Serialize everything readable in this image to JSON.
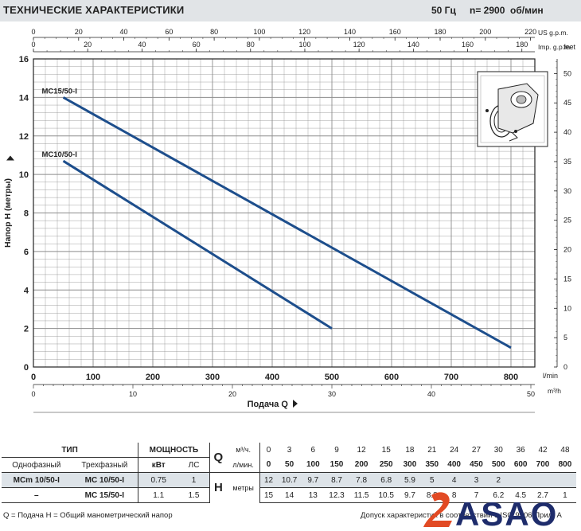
{
  "header": {
    "title": "ТЕХНИЧЕСКИЕ ХАРАКТЕРИСТИКИ",
    "frequency": "50 Гц",
    "speed": "n= 2900  об/мин"
  },
  "chart_data": {
    "type": "line",
    "xlabel": "Подача  Q",
    "ylabel": "Напор  H  (метры)",
    "x_unit_primary": "l/min",
    "x_unit_m3h": "m³/h",
    "x_unit_us": "US g.p.m.",
    "x_unit_imp": "Imp. g.p.m.",
    "y_unit_right": "feet",
    "xlim": [
      0,
      840
    ],
    "ylim": [
      0,
      16
    ],
    "grid": true,
    "x_ticks_lmin": [
      "0",
      "100",
      "200",
      "300",
      "400",
      "500",
      "600",
      "700",
      "800"
    ],
    "x_ticks_m3h": [
      "0",
      "10",
      "20",
      "30",
      "40",
      "50"
    ],
    "x_ticks_us": [
      "0",
      "20",
      "40",
      "60",
      "80",
      "100",
      "120",
      "140",
      "160",
      "180",
      "200",
      "220"
    ],
    "x_ticks_imp": [
      "0",
      "20",
      "40",
      "60",
      "80",
      "100",
      "120",
      "140",
      "160",
      "180"
    ],
    "y_ticks": [
      "0",
      "2",
      "4",
      "6",
      "8",
      "10",
      "12",
      "14",
      "16"
    ],
    "y_ticks_feet": [
      "0",
      "5",
      "10",
      "15",
      "20",
      "25",
      "30",
      "35",
      "40",
      "45",
      "50"
    ],
    "series": [
      {
        "name": "MC15/50-I",
        "x": [
          50,
          800
        ],
        "y": [
          14,
          1
        ]
      },
      {
        "name": "MC10/50-I",
        "x": [
          50,
          500
        ],
        "y": [
          10.7,
          2
        ]
      }
    ]
  },
  "table": {
    "type_header": "ТИП",
    "power_header": "МОЩНОСТЬ",
    "single_phase": "Однофазный",
    "three_phase": "Трехфазный",
    "kw": "кВт",
    "hp": "ЛС",
    "q_letter": "Q",
    "h_letter": "H",
    "q_unit_m3": "м³/ч.",
    "q_unit_l": "л/мин.",
    "h_unit": "метры",
    "q_m3": [
      "0",
      "3",
      "6",
      "9",
      "12",
      "15",
      "18",
      "21",
      "24",
      "27",
      "30",
      "36",
      "42",
      "48"
    ],
    "q_l": [
      "0",
      "50",
      "100",
      "150",
      "200",
      "250",
      "300",
      "350",
      "400",
      "450",
      "500",
      "600",
      "700",
      "800"
    ],
    "rows": [
      {
        "single": "MCm 10/50-I",
        "three": "MC 10/50-I",
        "kw": "0.75",
        "hp": "1",
        "h": [
          "12",
          "10.7",
          "9.7",
          "8.7",
          "7.8",
          "6.8",
          "5.9",
          "5",
          "4",
          "3",
          "2",
          "",
          "",
          ""
        ]
      },
      {
        "single": "–",
        "three": "MC 15/50-I",
        "kw": "1.1",
        "hp": "1.5",
        "h": [
          "15",
          "14",
          "13",
          "12.3",
          "11.5",
          "10.5",
          "9.7",
          "8.8",
          "8",
          "7",
          "6.2",
          "4.5",
          "2.7",
          "1"
        ]
      }
    ]
  },
  "footnote": {
    "left": "Q = Подача   H = Общий манометрический напор",
    "right": "Допуск характеристик в соответствии с ISO 9906 Прил. А"
  },
  "logo": {
    "text": "ASAO"
  },
  "colors": {
    "curve": "#1d4e8c",
    "grid": "#8c8c8c",
    "header_bg": "#e1e4e7",
    "table_shade": "#dde3e8",
    "logo_red": "#e24a24",
    "logo_blue": "#1e2c6b"
  }
}
